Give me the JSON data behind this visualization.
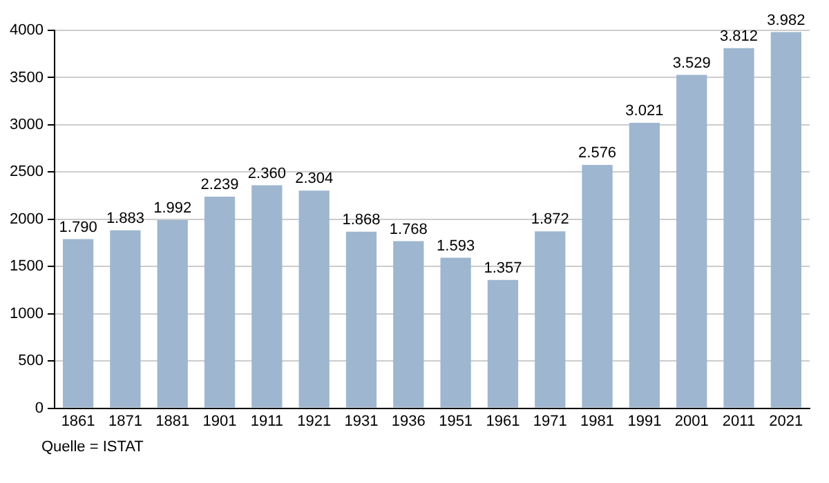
{
  "chart_data": {
    "type": "bar",
    "categories": [
      "1861",
      "1871",
      "1881",
      "1901",
      "1911",
      "1921",
      "1931",
      "1936",
      "1951",
      "1961",
      "1971",
      "1981",
      "1991",
      "2001",
      "2011",
      "2021"
    ],
    "values": [
      1790,
      1883,
      1992,
      2239,
      2360,
      2304,
      1868,
      1768,
      1593,
      1357,
      1872,
      2576,
      3021,
      3529,
      3812,
      3982
    ],
    "value_labels": [
      "1.790",
      "1.883",
      "1.992",
      "2.239",
      "2.360",
      "2.304",
      "1.868",
      "1.768",
      "1.593",
      "1.357",
      "1.872",
      "2.576",
      "3.021",
      "3.529",
      "3.812",
      "3.982"
    ],
    "color": "#9eb6cf",
    "ylim": [
      0,
      4000
    ],
    "yticks": [
      0,
      500,
      1000,
      1500,
      2000,
      2500,
      3000,
      3500,
      4000
    ],
    "grid": "y",
    "annotations": [
      "Quelle = ISTAT"
    ]
  }
}
